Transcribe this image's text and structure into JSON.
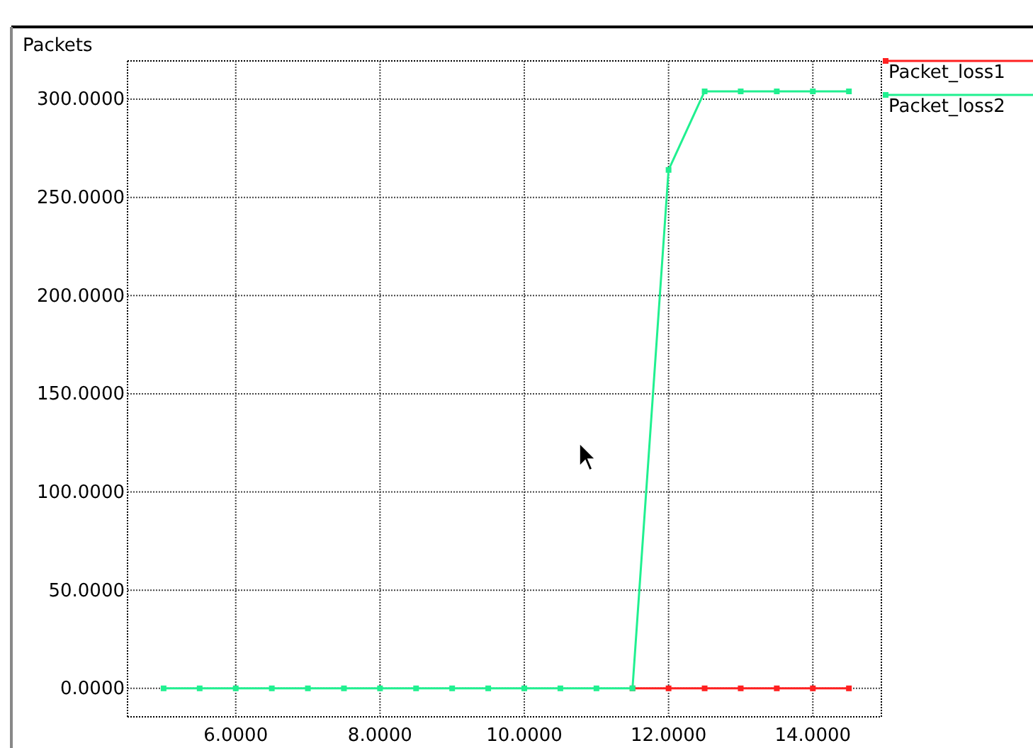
{
  "chart_data": {
    "type": "line",
    "ylabel": "Packets",
    "xlim": [
      4.5,
      14.95
    ],
    "ylim": [
      -14.5,
      319.5
    ],
    "xticks": [
      {
        "value": 6,
        "label": "6.0000"
      },
      {
        "value": 8,
        "label": "8.0000"
      },
      {
        "value": 10,
        "label": "10.0000"
      },
      {
        "value": 12,
        "label": "12.0000"
      },
      {
        "value": 14,
        "label": "14.0000"
      }
    ],
    "yticks": [
      {
        "value": 0,
        "label": "0.0000"
      },
      {
        "value": 50,
        "label": "50.0000"
      },
      {
        "value": 100,
        "label": "100.0000"
      },
      {
        "value": 150,
        "label": "150.0000"
      },
      {
        "value": 200,
        "label": "200.0000"
      },
      {
        "value": 250,
        "label": "250.0000"
      },
      {
        "value": 300,
        "label": "300.0000"
      }
    ],
    "grid": true,
    "legend": "top right",
    "marker": "square",
    "line_style": "solid",
    "series": [
      {
        "name": "Packet_loss1",
        "color": "#ff2020",
        "x": [
          11.5,
          12,
          12.5,
          13,
          13.5,
          14,
          14.5
        ],
        "values": [
          0,
          0,
          0,
          0,
          0,
          0,
          0
        ]
      },
      {
        "name": "Packet_loss2",
        "color": "#20f090",
        "x": [
          5,
          5.5,
          6,
          6.5,
          7,
          7.5,
          8,
          8.5,
          9,
          9.5,
          10,
          10.5,
          11,
          11.5,
          12,
          12.5,
          13,
          13.5,
          14,
          14.5
        ],
        "values": [
          0,
          0,
          0,
          0,
          0,
          0,
          0,
          0,
          0,
          0,
          0,
          0,
          0,
          0,
          264,
          304,
          304,
          304,
          304,
          304
        ]
      }
    ]
  }
}
